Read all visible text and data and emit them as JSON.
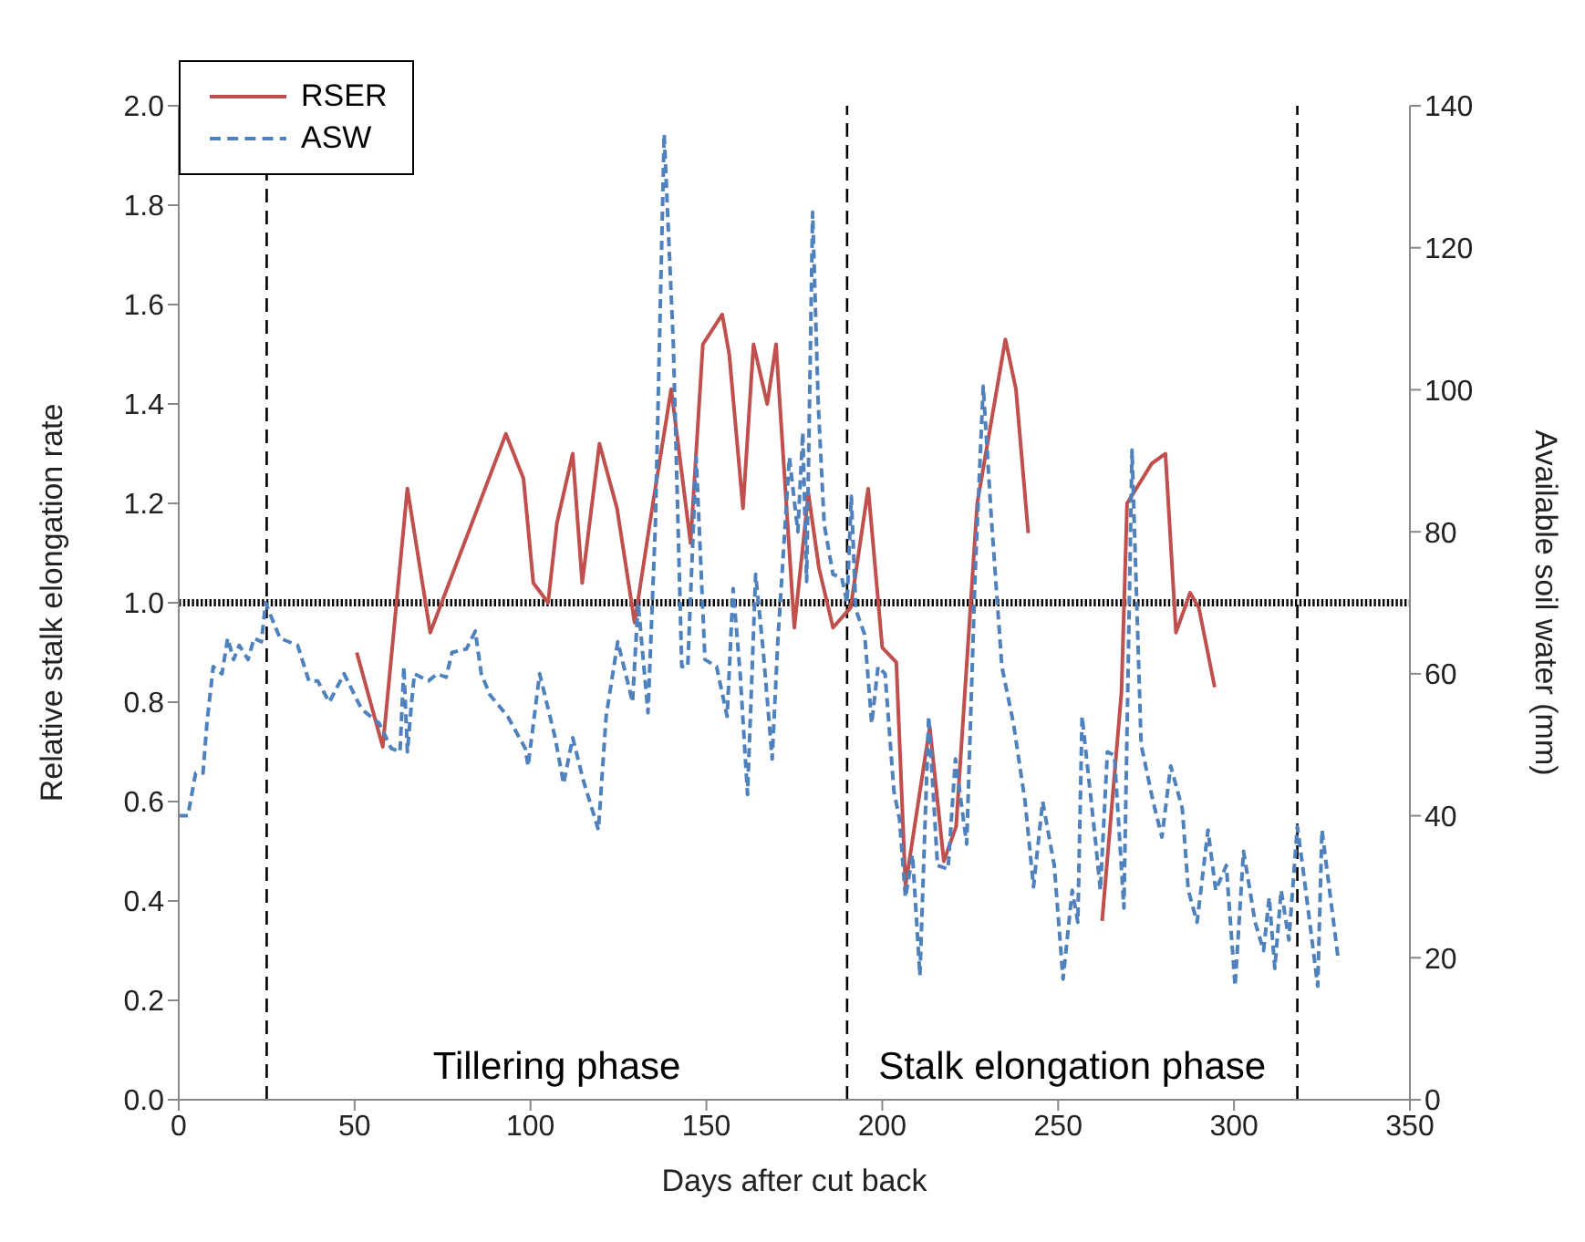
{
  "chart_data": {
    "type": "line",
    "xlabel": "Days after cut back",
    "ylabel": "Relative stalk elongation rate",
    "y2label": "Available soil water (mm)",
    "xlim": [
      0,
      350
    ],
    "xticks": [
      0,
      50,
      100,
      150,
      200,
      250,
      300,
      350
    ],
    "ylim": [
      0,
      2
    ],
    "yticks": [
      {
        "value": 0,
        "label": "0.0"
      },
      0.2,
      0.4,
      0.6,
      0.8,
      {
        "value": 1,
        "label": "1.0"
      },
      1.2,
      1.4,
      1.6,
      1.8,
      {
        "value": 2,
        "label": "2.0"
      }
    ],
    "y2lim": [
      0,
      140
    ],
    "y2ticks": [
      0,
      20,
      40,
      60,
      80,
      100,
      120,
      140
    ],
    "legend": "top left",
    "grid": false,
    "marker": "none",
    "series": [
      {
        "name": "RSER",
        "color": "#c0504d",
        "line_style": "solid",
        "x": [
          50.6,
          58,
          65,
          71.5,
          93,
          98,
          100.8,
          105,
          107.5,
          112,
          114.7,
          119.6,
          124.6,
          129.6,
          134.8,
          140,
          145.5,
          149,
          154.5,
          156.5,
          160.4,
          163.4,
          167.3,
          169.8,
          175,
          179,
          182,
          186,
          191,
          196,
          200,
          204,
          206.6,
          213.5,
          217.5,
          221,
          227,
          235,
          238,
          241.5,
          252,
          262.5,
          268,
          269.6,
          276.6,
          280.5,
          283.5,
          287.5,
          290,
          294.5
        ],
        "values": [
          0.9,
          0.71,
          1.23,
          0.94,
          1.34,
          1.25,
          1.04,
          1.0,
          1.16,
          1.3,
          1.04,
          1.32,
          1.19,
          0.96,
          1.2,
          1.43,
          1.12,
          1.52,
          1.58,
          1.5,
          1.19,
          1.52,
          1.4,
          1.52,
          0.95,
          1.22,
          1.07,
          0.95,
          0.99,
          1.23,
          0.91,
          0.88,
          0.43,
          0.75,
          0.48,
          0.55,
          1.2,
          1.53,
          1.43,
          1.14,
          null,
          0.36,
          0.82,
          1.2,
          1.28,
          1.3,
          0.94,
          1.02,
          0.99,
          0.83
        ]
      },
      {
        "name": "ASW",
        "color": "#4f81bd",
        "line_style": "dashed",
        "axis": "y2",
        "x": [
          0,
          2.6,
          4.8,
          6.9,
          8,
          9.8,
          12.3,
          13.9,
          15.6,
          17.2,
          19.7,
          21.4,
          23.5,
          24.7,
          26.3,
          28.8,
          33.8,
          37,
          39.5,
          42.8,
          47,
          52,
          57,
          60.4,
          62.9,
          64,
          65,
          66.2,
          67,
          71,
          73.5,
          76,
          77.7,
          81.8,
          84.3,
          86,
          88.5,
          93.5,
          98.5,
          99.3,
          102.6,
          107,
          109.4,
          112,
          115,
          119.3,
          121.5,
          124.8,
          127.3,
          129,
          130.6,
          133.4,
          135.5,
          138,
          140.6,
          143,
          144.7,
          147.1,
          149.6,
          152.9,
          155.9,
          157.6,
          159.6,
          161.7,
          164,
          166.2,
          168.7,
          170.3,
          173.6,
          176,
          177.4,
          178.5,
          180.2,
          181.8,
          183.5,
          186,
          188.5,
          190,
          191.2,
          192.5,
          195,
          197,
          198.8,
          200.8,
          203.3,
          204.9,
          206.6,
          208.6,
          210.7,
          213.2,
          215.7,
          218.7,
          220.8,
          224,
          226.4,
          228.7,
          231,
          234,
          237.3,
          240.6,
          243,
          245.6,
          248.9,
          251.4,
          254,
          255.6,
          256.8,
          260.5,
          262,
          264,
          266,
          268.7,
          271,
          273.6,
          277,
          279.5,
          282,
          285.3,
          287,
          289.5,
          292.6,
          294.8,
          297.8,
          300.3,
          302.7,
          306,
          308.4,
          310,
          311.6,
          313.4,
          315.6,
          318,
          320,
          323.8,
          325,
          329.7
        ],
        "values": [
          40,
          40,
          46,
          46,
          53,
          61,
          60,
          65,
          62,
          64,
          62,
          65,
          64.5,
          70,
          68,
          65,
          64,
          59,
          59,
          56,
          60,
          55,
          53,
          49.5,
          49,
          61,
          49,
          56,
          60,
          59,
          60,
          59.5,
          63,
          63.5,
          66,
          60,
          57,
          54,
          49.5,
          47,
          60,
          51,
          44.5,
          51,
          45,
          38,
          54,
          64.5,
          59.5,
          56,
          70,
          54.5,
          81,
          136,
          106.5,
          61,
          61,
          90.5,
          62,
          61,
          54,
          72,
          60,
          43,
          74,
          63,
          48,
          64.5,
          90.5,
          80,
          94,
          73,
          125,
          98,
          81,
          74,
          73.5,
          70,
          85,
          69,
          65.5,
          53,
          61,
          60,
          43.5,
          39.5,
          28.5,
          34.5,
          17.5,
          54,
          33,
          32.5,
          48,
          36,
          74,
          100.5,
          82,
          61,
          53,
          42,
          30,
          42,
          33,
          17,
          29.5,
          25,
          54,
          37,
          29.5,
          49,
          48.5,
          27,
          91.5,
          50,
          42,
          37,
          47,
          41,
          29.5,
          25,
          38,
          29.5,
          33,
          16,
          35,
          25,
          21,
          28.5,
          18.5,
          29.5,
          22.5,
          38.5,
          31,
          16,
          38,
          19.5
        ]
      }
    ],
    "ref_lines": [
      {
        "axis": "y",
        "value": 1.0,
        "color": "#000000",
        "line_style": "dotted"
      },
      {
        "axis": "x",
        "value": 25,
        "color": "#000000",
        "line_style": "dashed"
      },
      {
        "axis": "x",
        "value": 190,
        "color": "#000000",
        "line_style": "dashed"
      },
      {
        "axis": "x",
        "value": 318,
        "color": "#000000",
        "line_style": "dashed"
      }
    ],
    "annotations": [
      "Tillering phase",
      "Stalk elongation phase"
    ]
  }
}
